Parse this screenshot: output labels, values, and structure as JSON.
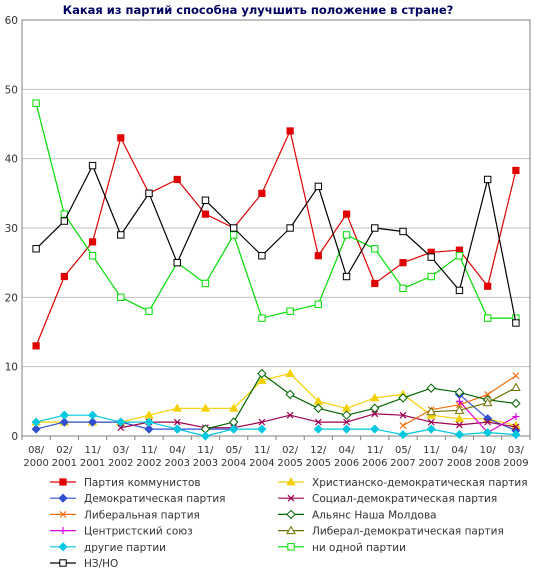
{
  "chart_data": {
    "type": "line",
    "title": "Какая из партий способна улучшить положение в стране?",
    "xlabel": "",
    "ylabel": "",
    "ylim": [
      0,
      60
    ],
    "yticks": [
      0,
      10,
      20,
      30,
      40,
      50,
      60
    ],
    "grid": "horizontal",
    "legend": "bottom",
    "categories": [
      [
        "08/",
        "2000"
      ],
      [
        "02/",
        "2001"
      ],
      [
        "11/",
        "2001"
      ],
      [
        "03/",
        "2002"
      ],
      [
        "11/",
        "2002"
      ],
      [
        "04/",
        "2003"
      ],
      [
        "11/",
        "2003"
      ],
      [
        "05/",
        "2004"
      ],
      [
        "11/",
        "2004"
      ],
      [
        "02/",
        "2005"
      ],
      [
        "12/",
        "2005"
      ],
      [
        "04/",
        "2006"
      ],
      [
        "11/",
        "2006"
      ],
      [
        "05/",
        "2007"
      ],
      [
        "11/",
        "2007"
      ],
      [
        "04/",
        "2008"
      ],
      [
        "10/",
        "2008"
      ],
      [
        "03/",
        "2009"
      ]
    ],
    "series": [
      {
        "name": "Партия коммунистов",
        "color": "#e00000",
        "marker": "square-filled",
        "values": [
          13,
          23,
          28,
          43,
          35,
          37,
          32,
          30,
          35,
          44,
          26,
          32,
          22,
          25,
          26.5,
          26.8,
          21.6,
          38.3
        ]
      },
      {
        "name": "Христианско-демократическая партия",
        "color": "#f5d000",
        "marker": "triangle-filled",
        "values": [
          2,
          2,
          2,
          2,
          3,
          4,
          4,
          4,
          8,
          9,
          5,
          4,
          5.5,
          6,
          3,
          2.5,
          2.5,
          1.5
        ]
      },
      {
        "name": "Демократическая партия",
        "color": "#3050d0",
        "marker": "diamond-filled",
        "values": [
          1,
          2,
          2,
          2,
          1,
          1,
          1,
          1,
          null,
          null,
          null,
          null,
          null,
          null,
          null,
          6,
          2.5,
          0.8
        ]
      },
      {
        "name": "Социал-демократическая партия",
        "color": "#a00050",
        "marker": "x",
        "values": [
          null,
          null,
          null,
          1.2,
          2,
          2,
          1.2,
          1.2,
          2,
          3,
          2,
          2,
          3.2,
          3,
          2,
          1.6,
          2,
          1.3
        ]
      },
      {
        "name": "Либеральная партия",
        "color": "#f07010",
        "marker": "x",
        "values": [
          null,
          null,
          null,
          null,
          null,
          null,
          null,
          null,
          null,
          null,
          null,
          null,
          null,
          1.5,
          3.8,
          4.5,
          6,
          8.7
        ]
      },
      {
        "name": "Альянс Наша Молдова",
        "color": "#006400",
        "marker": "diamond-open",
        "values": [
          null,
          null,
          null,
          null,
          null,
          null,
          1,
          2,
          9,
          6,
          4,
          3,
          4,
          5.5,
          6.9,
          6.3,
          5.2,
          4.7
        ]
      },
      {
        "name": "Центристский союз",
        "color": "#e000e0",
        "marker": "plus",
        "values": [
          null,
          null,
          null,
          null,
          null,
          null,
          null,
          null,
          null,
          null,
          null,
          null,
          null,
          null,
          null,
          5,
          0.5,
          2.8
        ]
      },
      {
        "name": "Либерал-демократическая партия",
        "color": "#707000",
        "marker": "triangle-open",
        "values": [
          null,
          null,
          null,
          null,
          null,
          null,
          null,
          null,
          null,
          null,
          null,
          null,
          null,
          null,
          3.5,
          3.7,
          4.8,
          7
        ]
      },
      {
        "name": "другие партии",
        "color": "#00c8e0",
        "marker": "diamond-filled",
        "values": [
          2,
          3,
          3,
          2,
          2,
          1,
          0,
          1,
          1,
          null,
          1,
          1,
          1,
          0.2,
          1,
          0.2,
          0.5,
          0.2
        ]
      },
      {
        "name": "ни одной партии",
        "color": "#00dd00",
        "marker": "square-open",
        "values": [
          48,
          32,
          26,
          20,
          18,
          25,
          22,
          29,
          17,
          18,
          19,
          29,
          27,
          21.3,
          23,
          26,
          17,
          17
        ]
      },
      {
        "name": "НЗ/НО",
        "color": "#000000",
        "marker": "square-open",
        "values": [
          27,
          31,
          39,
          29,
          35,
          25,
          34,
          30,
          26,
          30,
          36,
          23,
          30,
          29.5,
          25.8,
          21,
          37,
          16.3
        ]
      }
    ]
  }
}
